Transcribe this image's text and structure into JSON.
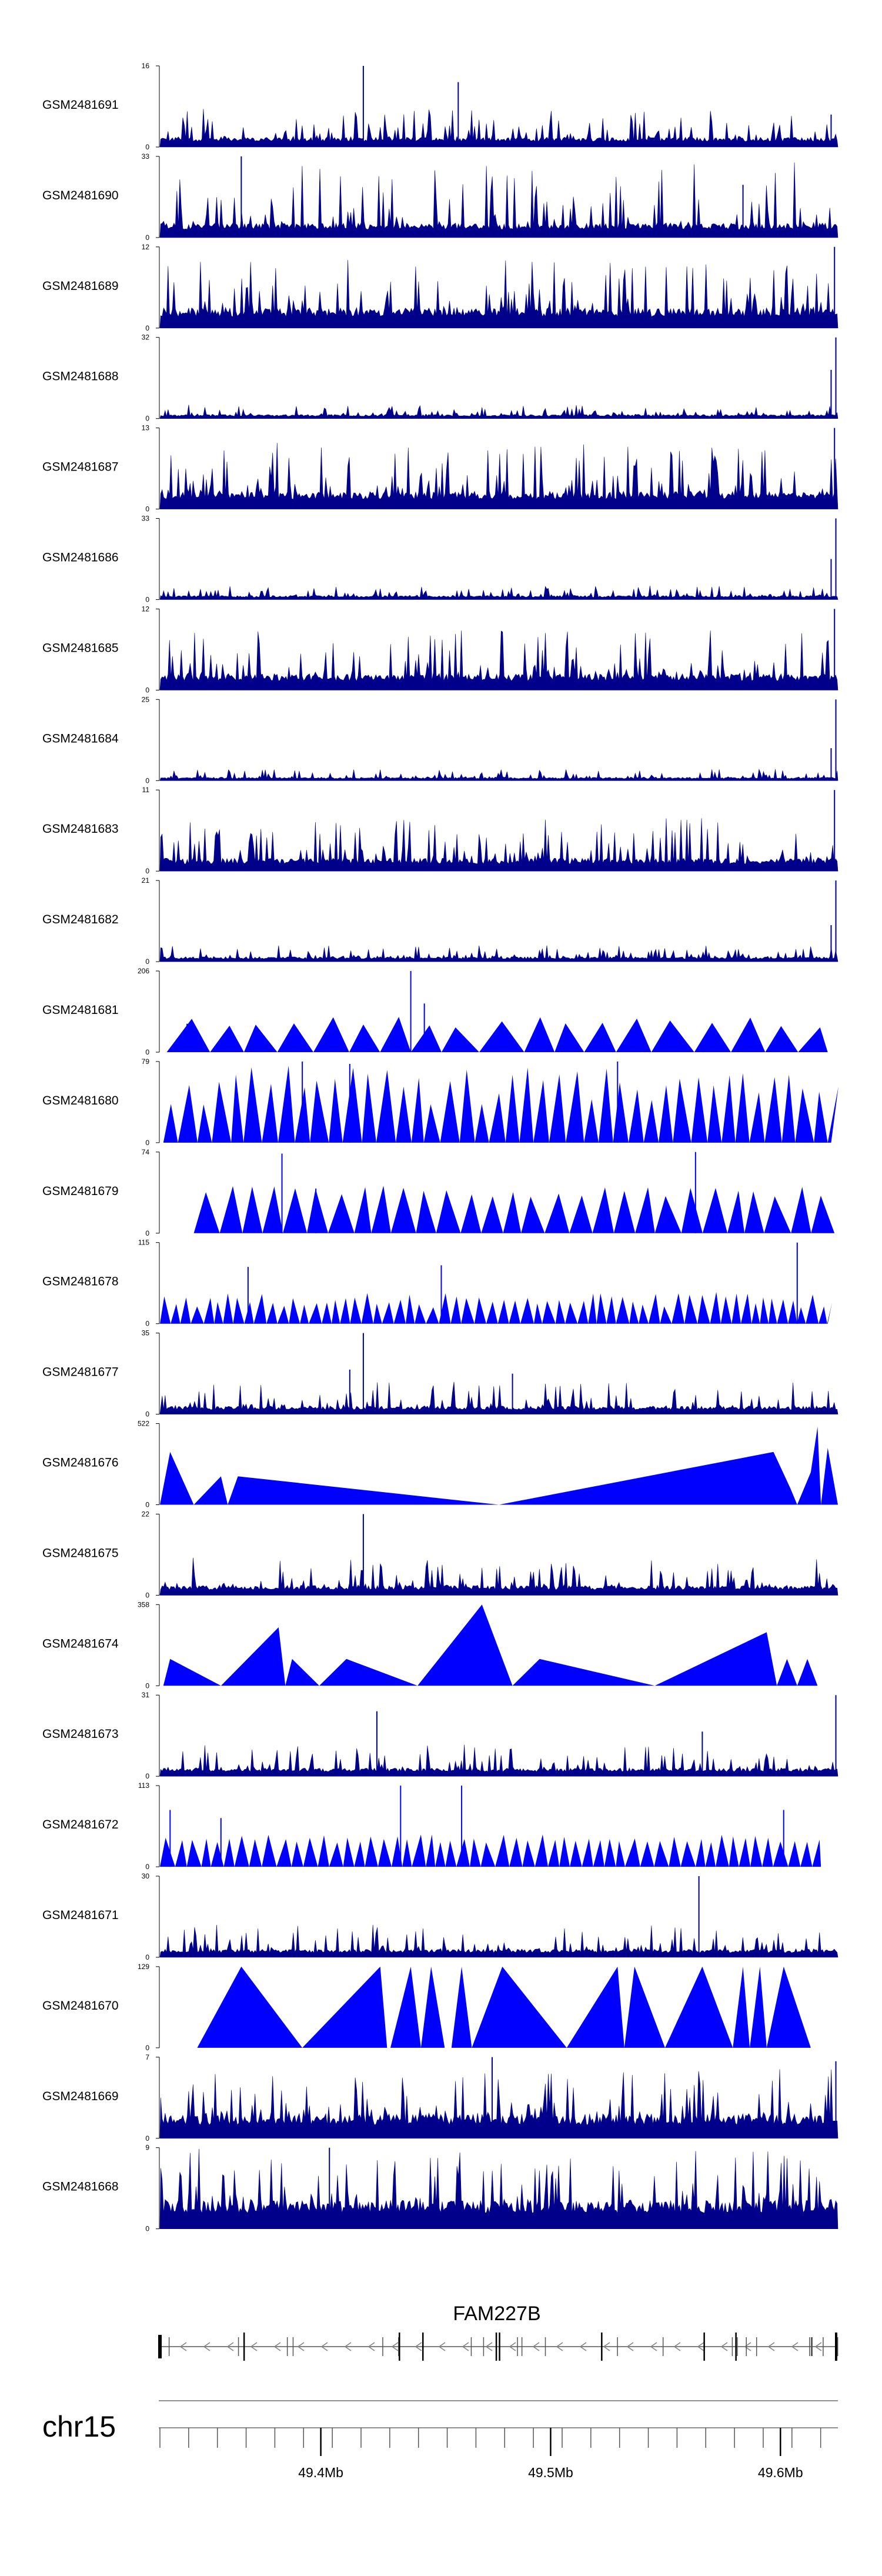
{
  "colors": {
    "signal": "#0000ff",
    "dense": "#00008b",
    "axis": "#000000",
    "gene": "#808080"
  },
  "chart_data": {
    "type": "area",
    "title": "",
    "chromosome": "chr15",
    "gene": {
      "name": "FAM227B",
      "strand": "-",
      "start": 49.33,
      "end": 49.625
    },
    "xlim": [
      49.33,
      49.625
    ],
    "x_ticks": [
      {
        "value": 49.4,
        "label": "49.4Mb"
      },
      {
        "value": 49.5,
        "label": "49.5Mb"
      },
      {
        "value": 49.6,
        "label": "49.6Mb"
      }
    ],
    "tracks": [
      {
        "name": "GSM2481691",
        "ymax": 16,
        "ymin": 0,
        "style": "dense",
        "base": 0.12,
        "amp": 0.35,
        "spikes": [
          [
            0.3,
            1.0
          ],
          [
            0.44,
            0.8
          ],
          [
            0.99,
            0.4
          ]
        ]
      },
      {
        "name": "GSM2481690",
        "ymax": 33,
        "ymin": 0,
        "style": "dense",
        "base": 0.18,
        "amp": 0.75,
        "spikes": [
          [
            0.12,
            1.0
          ],
          [
            0.86,
            0.65
          ]
        ]
      },
      {
        "name": "GSM2481689",
        "ymax": 12,
        "ymin": 0,
        "style": "dense",
        "base": 0.25,
        "amp": 0.6,
        "spikes": [
          [
            0.995,
            1.0
          ]
        ]
      },
      {
        "name": "GSM2481688",
        "ymax": 32,
        "ymin": 0,
        "style": "dense",
        "base": 0.05,
        "amp": 0.12,
        "spikes": [
          [
            0.99,
            0.6
          ],
          [
            0.997,
            1.0
          ]
        ]
      },
      {
        "name": "GSM2481687",
        "ymax": 13,
        "ymin": 0,
        "style": "dense",
        "base": 0.22,
        "amp": 0.6,
        "spikes": [
          [
            0.995,
            1.0
          ]
        ]
      },
      {
        "name": "GSM2481686",
        "ymax": 33,
        "ymin": 0,
        "style": "dense",
        "base": 0.05,
        "amp": 0.12,
        "spikes": [
          [
            0.99,
            0.5
          ],
          [
            0.997,
            1.0
          ]
        ]
      },
      {
        "name": "GSM2481685",
        "ymax": 12,
        "ymin": 0,
        "style": "dense",
        "base": 0.2,
        "amp": 0.55,
        "spikes": [
          [
            0.995,
            1.0
          ]
        ]
      },
      {
        "name": "GSM2481684",
        "ymax": 25,
        "ymin": 0,
        "style": "dense",
        "base": 0.04,
        "amp": 0.1,
        "spikes": [
          [
            0.99,
            0.4
          ],
          [
            0.997,
            1.0
          ]
        ]
      },
      {
        "name": "GSM2481683",
        "ymax": 11,
        "ymin": 0,
        "style": "dense",
        "base": 0.16,
        "amp": 0.5,
        "spikes": [
          [
            0.995,
            1.0
          ]
        ]
      },
      {
        "name": "GSM2481682",
        "ymax": 21,
        "ymin": 0,
        "style": "dense",
        "base": 0.06,
        "amp": 0.14,
        "spikes": [
          [
            0.99,
            0.45
          ],
          [
            0.997,
            1.0
          ]
        ]
      },
      {
        "name": "GSM2481681",
        "ymax": 206,
        "ymin": 0,
        "style": "peaks",
        "first": 0.01,
        "last": 0.985,
        "step": 0.058,
        "hmin": 0.3,
        "hmax": 0.45,
        "spikes": [
          [
            0.37,
            1.0
          ],
          [
            0.39,
            0.6
          ],
          [
            0.04,
            0.35
          ]
        ]
      },
      {
        "name": "GSM2481680",
        "ymax": 79,
        "ymin": 0,
        "style": "peaks",
        "first": 0.005,
        "last": 0.99,
        "step": 0.024,
        "hmin": 0.45,
        "hmax": 0.95,
        "spikes": [
          [
            0.21,
            1.0
          ],
          [
            0.28,
            0.97
          ],
          [
            0.675,
            1.0
          ]
        ]
      },
      {
        "name": "GSM2481679",
        "ymax": 74,
        "ymin": 0,
        "style": "peaks",
        "first": 0.05,
        "last": 0.995,
        "step": 0.032,
        "hmin": 0.45,
        "hmax": 0.6,
        "spikes": [
          [
            0.18,
            0.98
          ],
          [
            0.79,
            1.0
          ],
          [
            0.23,
            0.55
          ]
        ]
      },
      {
        "name": "GSM2481678",
        "ymax": 115,
        "ymin": 0,
        "style": "peaks",
        "first": 0.0,
        "last": 0.985,
        "step": 0.016,
        "hmin": 0.2,
        "hmax": 0.4,
        "spikes": [
          [
            0.13,
            0.7
          ],
          [
            0.415,
            0.72
          ],
          [
            0.94,
            1.0
          ]
        ]
      },
      {
        "name": "GSM2481677",
        "ymax": 35,
        "ymin": 0,
        "style": "dense",
        "base": 0.1,
        "amp": 0.3,
        "spikes": [
          [
            0.3,
            1.0
          ],
          [
            0.28,
            0.55
          ],
          [
            0.52,
            0.5
          ]
        ]
      },
      {
        "name": "GSM2481676",
        "ymax": 522,
        "ymin": 0,
        "style": "custom",
        "points": [
          [
            0.0,
            0.0
          ],
          [
            0.015,
            0.65
          ],
          [
            0.05,
            0.0
          ],
          [
            0.09,
            0.35
          ],
          [
            0.1,
            0.0
          ],
          [
            0.115,
            0.35
          ],
          [
            0.5,
            0.0
          ],
          [
            0.905,
            0.65
          ],
          [
            0.93,
            0.2
          ],
          [
            0.94,
            0.0
          ],
          [
            0.96,
            0.4
          ],
          [
            0.97,
            0.96
          ],
          [
            0.975,
            0.0
          ],
          [
            0.985,
            0.7
          ],
          [
            1.0,
            0.0
          ]
        ]
      },
      {
        "name": "GSM2481675",
        "ymax": 22,
        "ymin": 0,
        "style": "dense",
        "base": 0.12,
        "amp": 0.35,
        "spikes": [
          [
            0.3,
            1.0
          ]
        ]
      },
      {
        "name": "GSM2481674",
        "ymax": 358,
        "ymin": 0,
        "style": "custom",
        "points": [
          [
            0.005,
            0.0
          ],
          [
            0.015,
            0.33
          ],
          [
            0.09,
            0.0
          ],
          [
            0.175,
            0.72
          ],
          [
            0.185,
            0.0
          ],
          [
            0.195,
            0.33
          ],
          [
            0.235,
            0.0
          ],
          [
            0.275,
            0.33
          ],
          [
            0.38,
            0.0
          ],
          [
            0.475,
            1.0
          ],
          [
            0.52,
            0.0
          ],
          [
            0.56,
            0.33
          ],
          [
            0.73,
            0.0
          ],
          [
            0.895,
            0.66
          ],
          [
            0.91,
            0.0
          ],
          [
            0.925,
            0.33
          ],
          [
            0.94,
            0.0
          ],
          [
            0.955,
            0.33
          ],
          [
            0.97,
            0.0
          ]
        ]
      },
      {
        "name": "GSM2481673",
        "ymax": 31,
        "ymin": 0,
        "style": "dense",
        "base": 0.1,
        "amp": 0.3,
        "spikes": [
          [
            0.32,
            0.8
          ],
          [
            0.8,
            0.55
          ],
          [
            0.997,
            1.0
          ]
        ]
      },
      {
        "name": "GSM2481672",
        "ymax": 113,
        "ymin": 0,
        "style": "peaks",
        "first": 0.0,
        "last": 0.975,
        "step": 0.018,
        "hmin": 0.3,
        "hmax": 0.4,
        "spikes": [
          [
            0.355,
            1.0
          ],
          [
            0.445,
            1.0
          ],
          [
            0.015,
            0.7
          ],
          [
            0.09,
            0.6
          ],
          [
            0.92,
            0.7
          ]
        ]
      },
      {
        "name": "GSM2481671",
        "ymax": 30,
        "ymin": 0,
        "style": "dense",
        "base": 0.1,
        "amp": 0.3,
        "spikes": [
          [
            0.795,
            1.0
          ]
        ]
      },
      {
        "name": "GSM2481670",
        "ymax": 129,
        "ymin": 0,
        "style": "custom",
        "points": [
          [
            0.055,
            0.0
          ],
          [
            0.12,
            1.0
          ],
          [
            0.21,
            0.0
          ],
          [
            0.325,
            1.0
          ],
          [
            0.335,
            0.0
          ],
          [
            0.34,
            0.0
          ],
          [
            0.37,
            1.0
          ],
          [
            0.385,
            0.0
          ],
          [
            0.4,
            1.0
          ],
          [
            0.42,
            0.0
          ],
          [
            0.43,
            0.0
          ],
          [
            0.445,
            1.0
          ],
          [
            0.46,
            0.0
          ],
          [
            0.505,
            1.0
          ],
          [
            0.6,
            0.0
          ],
          [
            0.675,
            1.0
          ],
          [
            0.685,
            0.0
          ],
          [
            0.7,
            1.0
          ],
          [
            0.745,
            0.0
          ],
          [
            0.8,
            1.0
          ],
          [
            0.845,
            0.0
          ],
          [
            0.86,
            1.0
          ],
          [
            0.87,
            0.0
          ],
          [
            0.885,
            1.0
          ],
          [
            0.895,
            0.0
          ],
          [
            0.92,
            1.0
          ],
          [
            0.96,
            0.0
          ]
        ]
      },
      {
        "name": "GSM2481669",
        "ymax": 7,
        "ymin": 0,
        "style": "dense",
        "base": 0.3,
        "amp": 0.55,
        "spikes": [
          [
            0.49,
            1.0
          ],
          [
            0.997,
            0.95
          ]
        ]
      },
      {
        "name": "GSM2481668",
        "ymax": 9,
        "ymin": 0,
        "style": "dense",
        "base": 0.35,
        "amp": 0.65,
        "spikes": [
          [
            0.25,
            1.0
          ]
        ]
      }
    ]
  }
}
